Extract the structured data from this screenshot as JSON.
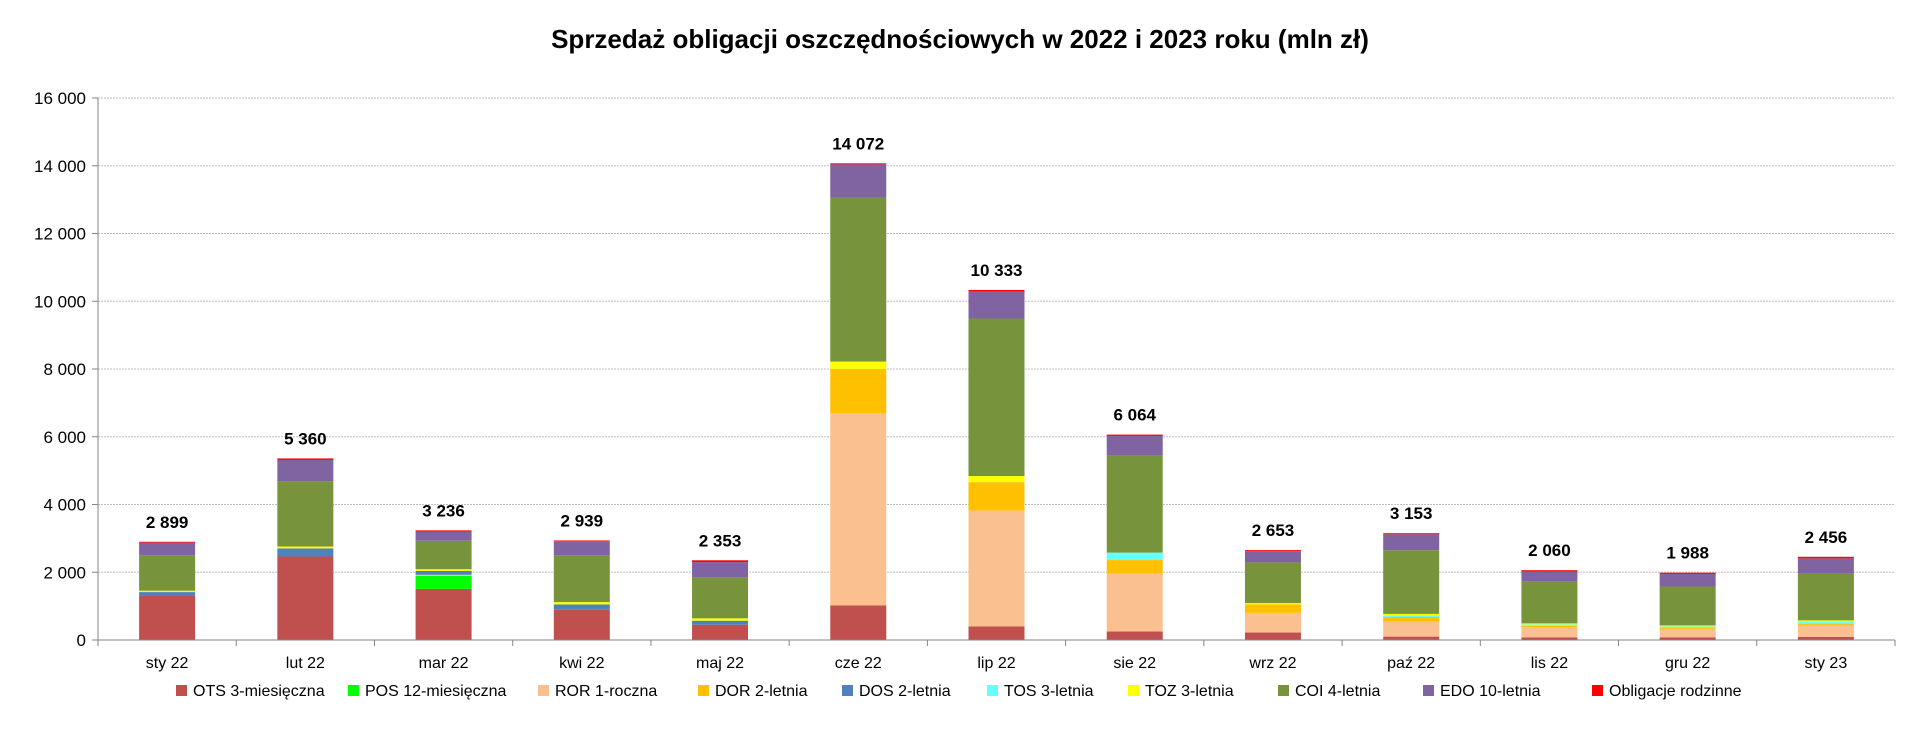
{
  "chart_data": {
    "type": "bar",
    "stacked": true,
    "title": "Sprzedaż obligacji oszczędnościowych w 2022 i 2023 roku (mln zł)",
    "xlabel": "",
    "ylabel": "",
    "ylim": [
      0,
      16000
    ],
    "yticks": [
      0,
      2000,
      4000,
      6000,
      8000,
      10000,
      12000,
      14000,
      16000
    ],
    "ytick_labels": [
      "0",
      "2 000",
      "4 000",
      "6 000",
      "8 000",
      "10 000",
      "12 000",
      "14 000",
      "16 000"
    ],
    "grid": true,
    "legend_position": "bottom",
    "categories": [
      "sty 22",
      "lut 22",
      "mar 22",
      "kwi 22",
      "maj 22",
      "cze 22",
      "lip 22",
      "sie 22",
      "wrz 22",
      "paź 22",
      "lis 22",
      "gru 22",
      "sty 23"
    ],
    "totals": [
      2899,
      5360,
      3236,
      2939,
      2353,
      14072,
      10333,
      6064,
      2653,
      3153,
      2060,
      1988,
      2456
    ],
    "total_labels": [
      "2 899",
      "5 360",
      "3 236",
      "2 939",
      "2 353",
      "14 072",
      "10 333",
      "6 064",
      "2 653",
      "3 153",
      "2 060",
      "1 988",
      "2 456"
    ],
    "series": [
      {
        "name": "OTS 3-miesięczna",
        "color": "#C0504D",
        "values": [
          1300,
          2465,
          1510,
          890,
          450,
          1020,
          400,
          250,
          220,
          100,
          80,
          80,
          90
        ]
      },
      {
        "name": "POS 12-miesięczna",
        "color": "#00FF00",
        "values": [
          0,
          0,
          385,
          0,
          0,
          0,
          0,
          0,
          0,
          0,
          0,
          0,
          0
        ]
      },
      {
        "name": "ROR 1-roczna",
        "color": "#FAC090",
        "values": [
          0,
          0,
          30,
          0,
          0,
          5670,
          3420,
          1710,
          580,
          440,
          300,
          250,
          330
        ]
      },
      {
        "name": "DOR 2-letnia",
        "color": "#FFC000",
        "values": [
          0,
          0,
          0,
          0,
          0,
          1310,
          840,
          400,
          250,
          140,
          40,
          40,
          50
        ]
      },
      {
        "name": "DOS 2-letnia",
        "color": "#4F81BD",
        "values": [
          115,
          240,
          115,
          160,
          120,
          0,
          0,
          0,
          0,
          0,
          0,
          0,
          0
        ]
      },
      {
        "name": "TOS 3-letnia",
        "color": "#66FFFF",
        "values": [
          0,
          0,
          0,
          0,
          0,
          0,
          0,
          220,
          0,
          50,
          40,
          30,
          80
        ]
      },
      {
        "name": "TOZ 3-letnia",
        "color": "#FFFF00",
        "values": [
          40,
          55,
          50,
          70,
          70,
          220,
          180,
          0,
          40,
          40,
          30,
          30,
          30
        ]
      },
      {
        "name": "COI 4-letnia",
        "color": "#77933C",
        "values": [
          1045,
          1930,
          840,
          1385,
          1210,
          4840,
          4650,
          2870,
          1200,
          1880,
          1230,
          1150,
          1380
        ]
      },
      {
        "name": "EDO 10-letnia",
        "color": "#8064A2",
        "values": [
          375,
          625,
          270,
          410,
          450,
          980,
          800,
          574,
          330,
          470,
          300,
          370,
          450
        ]
      },
      {
        "name": "Obligacje rodzinne",
        "color": "#FF0000",
        "values": [
          24,
          45,
          36,
          24,
          53,
          32,
          43,
          40,
          33,
          33,
          40,
          38,
          46
        ]
      }
    ]
  }
}
